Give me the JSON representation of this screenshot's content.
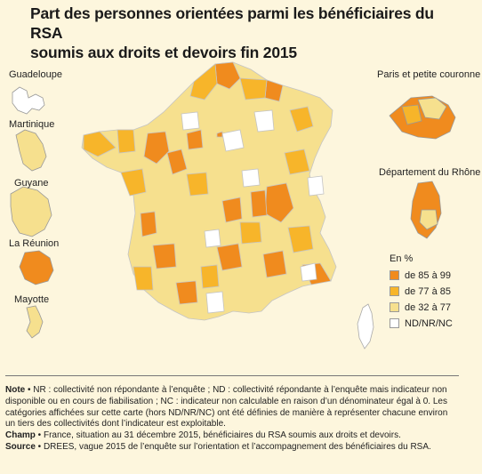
{
  "title_line1": "Part des personnes orientées parmi les bénéficiaires du RSA",
  "title_line2": "soumis aux droits et devoirs fin 2015",
  "insets": {
    "guadeloupe": "Guadeloupe",
    "martinique": "Martinique",
    "guyane": "Guyane",
    "reunion": "La Réunion",
    "mayotte": "Mayotte",
    "paris": "Paris et petite couronne",
    "rhone": "Département du Rhône"
  },
  "legend": {
    "title": "En %",
    "items": [
      {
        "label": "de 85 à 99",
        "color": "#f08b1e"
      },
      {
        "label": "de 77 à 85",
        "color": "#f7b52a"
      },
      {
        "label": "de 32 à 77",
        "color": "#f6e08e"
      },
      {
        "label": "ND/NR/NC",
        "color": "#ffffff"
      }
    ]
  },
  "notes": {
    "note_label": "Note",
    "note_text": " • NR : collectivité non répondante à l’enquête ; ND : collectivité répondante à l’enquête mais indicateur non disponible ou en cours de fiabilisation ; NC : indicateur non calculable en raison d’un dénominateur égal à 0. Les catégories affichées sur cette carte (hors ND/NR/NC) ont été définies de manière à représenter chacune environ un tiers des collectivités dont l’indicateur est exploitable.",
    "champ_label": "Champ",
    "champ_text": " • France, situation au 31 décembre 2015, bénéficiaires du RSA soumis aux droits et devoirs.",
    "source_label": "Source",
    "source_text": " • DREES, vague 2015 de l’enquête sur l’orientation et l’accompagnement des bénéficiaires du RSA."
  }
}
